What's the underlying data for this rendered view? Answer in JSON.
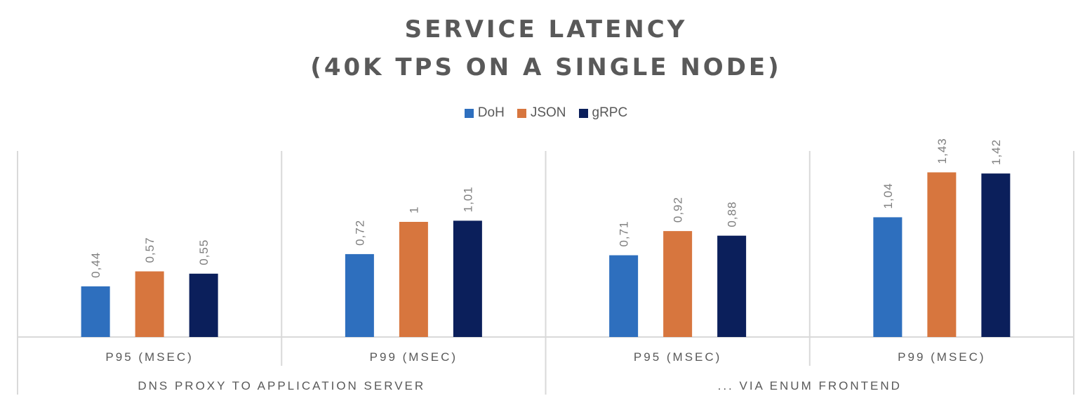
{
  "chart_data": {
    "type": "bar",
    "title": "SERVICE LATENCY",
    "subtitle": "(40K TPS ON A SINGLE NODE)",
    "legend_position": "top",
    "grid": false,
    "ylim": [
      0,
      1.6
    ],
    "categories": [
      "P95 (MSEC)",
      "P99 (MSEC)",
      "P95 (MSEC)",
      "P99 (MSEC)"
    ],
    "groups": [
      {
        "label": "DNS PROXY TO APPLICATION SERVER",
        "categories": [
          0,
          1
        ]
      },
      {
        "label": "... VIA ENUM FRONTEND",
        "categories": [
          2,
          3
        ]
      }
    ],
    "series": [
      {
        "name": "DoH",
        "color": "#2e6fbe",
        "values": [
          0.44,
          0.72,
          0.71,
          1.04
        ],
        "labels": [
          "0,44",
          "0,72",
          "0,71",
          "1,04"
        ]
      },
      {
        "name": "JSON",
        "color": "#d7763e",
        "values": [
          0.57,
          1,
          0.92,
          1.43
        ],
        "labels": [
          "0,57",
          "1",
          "0,92",
          "1,43"
        ]
      },
      {
        "name": "gRPC",
        "color": "#0b1f5b",
        "values": [
          0.55,
          1.01,
          0.88,
          1.42
        ],
        "labels": [
          "0,55",
          "1,01",
          "0,88",
          "1,42"
        ]
      }
    ]
  }
}
